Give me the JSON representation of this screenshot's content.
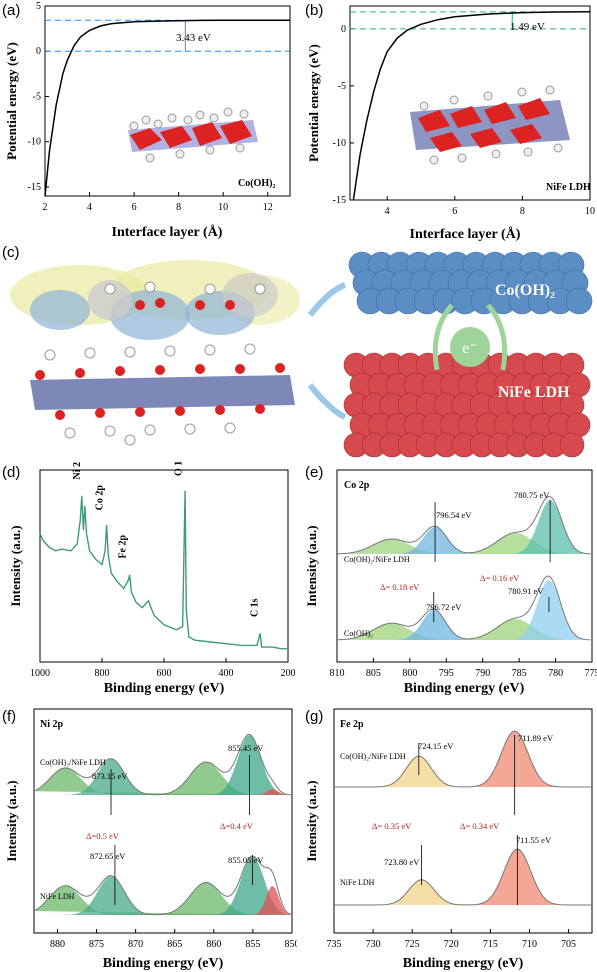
{
  "panels": {
    "a": {
      "label": "(a)",
      "xlabel": "Interface layer (Å)",
      "ylabel": "Potential energy (eV)",
      "xticks": [
        "2",
        "4",
        "6",
        "8",
        "10",
        "12"
      ],
      "yticks": [
        "5",
        "0",
        "-5",
        "-10",
        "-15"
      ],
      "annotation": "3.43 eV",
      "material": "Co(OH)₂",
      "line_color": "#000000",
      "dash_color": "#1e90ff"
    },
    "b": {
      "label": "(b)",
      "xlabel": "Interface layer (Å)",
      "ylabel": "Potential energy (eV)",
      "xticks": [
        "4",
        "6",
        "8",
        "10"
      ],
      "yticks": [
        "0",
        "-5",
        "-10",
        "-15"
      ],
      "annotation": "1.49 eV",
      "material": "NiFe LDH",
      "line_color": "#000000",
      "dash_color": "#2fb36a"
    },
    "c": {
      "label": "(c)",
      "top_label": "Co(OH)₂",
      "electron": "e⁻",
      "bottom_label": "NiFe LDH",
      "top_color": "#5b8ec4",
      "bottom_color": "#d6494c"
    },
    "d": {
      "label": "(d)",
      "xlabel": "Binding energy (eV)",
      "ylabel": "Intensity (a.u.)",
      "xticks": [
        "1000",
        "800",
        "600",
        "400",
        "200"
      ],
      "peaks": [
        "Ni 2p",
        "Co 2p",
        "Fe 2p",
        "O 1s",
        "C 1s"
      ],
      "line_color": "#3f9a7e"
    },
    "e": {
      "label": "(e)",
      "title": "Co 2p",
      "xlabel": "Binding energy (eV)",
      "ylabel": "Intensity (a.u.)",
      "xticks": [
        "810",
        "805",
        "800",
        "795",
        "790",
        "785",
        "780",
        "775"
      ],
      "top_sample": "Co(OH)₂/NiFe LDH",
      "bottom_sample": "Co(OH)₂",
      "peak_labels": [
        "796.54 eV",
        "780.75 eV",
        "796.72 eV",
        "780.91 eV"
      ],
      "shifts": [
        "Δ= 0.18 eV",
        "Δ= 0.16 eV"
      ]
    },
    "f": {
      "label": "(f)",
      "title": "Ni 2p",
      "xlabel": "Binding energy (eV)",
      "ylabel": "Intensity (a.u.)",
      "xticks": [
        "880",
        "875",
        "870",
        "865",
        "860",
        "855",
        "850"
      ],
      "top_sample": "Co(OH)₂/NiFe LDH",
      "bottom_sample": "NiFe LDH",
      "peak_labels": [
        "873.15 eV",
        "855.45 eV",
        "872.65 eV",
        "855.05 eV"
      ],
      "shifts": [
        "Δ=0.5 eV",
        "Δ=0.4 eV"
      ]
    },
    "g": {
      "label": "(g)",
      "title": "Fe 2p",
      "xlabel": "Binding energy (eV)",
      "ylabel": "Intensity (a.u.)",
      "xticks": [
        "735",
        "730",
        "725",
        "720",
        "715",
        "710",
        "705"
      ],
      "top_sample": "Co(OH)₂/NiFe LDH",
      "bottom_sample": "NiFe LDH",
      "peak_labels": [
        "724.15 eV",
        "711.89 eV",
        "723.80 eV",
        "711.55 eV"
      ],
      "shifts": [
        "Δ= 0.35 eV",
        "Δ= 0.34 eV"
      ]
    }
  },
  "chart_data": [
    {
      "type": "line",
      "xlabel": "Interface layer (Å)",
      "ylabel": "Potential energy (eV)",
      "xlim": [
        2,
        13
      ],
      "ylim": [
        -16,
        5
      ],
      "x": [
        2.0,
        2.2,
        2.5,
        2.8,
        3.0,
        3.3,
        3.6,
        4.0,
        4.5,
        5.0,
        6.0,
        7.0,
        8.0,
        9.0,
        10.0,
        11.0,
        12.0,
        13.0
      ],
      "y": [
        -16.0,
        -11.0,
        -6.0,
        -2.5,
        -1.0,
        0.6,
        1.6,
        2.3,
        2.8,
        3.05,
        3.25,
        3.33,
        3.38,
        3.41,
        3.42,
        3.43,
        3.43,
        3.43
      ],
      "annotations": [
        "3.43 eV",
        "Co(OH)₂"
      ]
    },
    {
      "type": "line",
      "xlabel": "Interface layer (Å)",
      "ylabel": "Potential energy (eV)",
      "xlim": [
        2.9,
        10
      ],
      "ylim": [
        -15,
        2
      ],
      "x": [
        3.0,
        3.2,
        3.4,
        3.6,
        3.8,
        4.0,
        4.3,
        4.6,
        5.0,
        5.5,
        6.0,
        7.0,
        8.0,
        9.0,
        10.0
      ],
      "y": [
        -15.0,
        -11.0,
        -8.0,
        -5.5,
        -3.5,
        -2.0,
        -0.8,
        -0.1,
        0.4,
        0.8,
        1.05,
        1.3,
        1.42,
        1.47,
        1.49
      ],
      "annotations": [
        "1.49 eV",
        "NiFe LDH"
      ]
    },
    {
      "type": "line",
      "xlabel": "Binding energy (eV)",
      "ylabel": "Intensity (a.u.)",
      "xlim": [
        1000,
        200
      ],
      "x": [
        1000,
        990,
        970,
        950,
        930,
        900,
        880,
        870,
        865,
        860,
        855,
        850,
        840,
        820,
        800,
        790,
        785,
        780,
        775,
        770,
        750,
        730,
        715,
        711,
        705,
        690,
        670,
        650,
        640,
        630,
        600,
        560,
        540,
        532,
        528,
        520,
        500,
        450,
        400,
        350,
        300,
        290,
        285,
        280,
        250,
        220,
        200
      ],
      "y": [
        0.7,
        0.66,
        0.62,
        0.6,
        0.61,
        0.6,
        0.64,
        0.78,
        0.92,
        0.72,
        0.86,
        0.7,
        0.6,
        0.55,
        0.52,
        0.6,
        0.75,
        0.58,
        0.52,
        0.47,
        0.42,
        0.38,
        0.43,
        0.46,
        0.36,
        0.3,
        0.27,
        0.31,
        0.26,
        0.22,
        0.17,
        0.14,
        0.16,
        0.95,
        0.25,
        0.1,
        0.08,
        0.07,
        0.06,
        0.05,
        0.05,
        0.12,
        0.04,
        0.04,
        0.04,
        0.03,
        0.03
      ],
      "annotations": [
        "Ni 2p",
        "Co 2p",
        "Fe 2p",
        "O 1s",
        "C 1s"
      ]
    },
    {
      "type": "line",
      "title": "Co 2p",
      "xlabel": "Binding energy (eV)",
      "ylabel": "Intensity (a.u.)",
      "xlim": [
        810,
        775
      ],
      "series": [
        {
          "name": "Co(OH)₂/NiFe LDH",
          "peaks": [
            796.54,
            780.75
          ]
        },
        {
          "name": "Co(OH)₂",
          "peaks": [
            796.72,
            780.91
          ]
        }
      ],
      "annotations": [
        "Δ= 0.18 eV",
        "Δ= 0.16 eV"
      ]
    },
    {
      "type": "line",
      "title": "Ni 2p",
      "xlabel": "Binding energy (eV)",
      "ylabel": "Intensity (a.u.)",
      "xlim": [
        883,
        850
      ],
      "series": [
        {
          "name": "Co(OH)₂/NiFe LDH",
          "peaks": [
            873.15,
            855.45
          ]
        },
        {
          "name": "NiFe LDH",
          "peaks": [
            872.65,
            855.05
          ]
        }
      ],
      "annotations": [
        "Δ=0.5 eV",
        "Δ=0.4 eV"
      ]
    },
    {
      "type": "line",
      "title": "Fe 2p",
      "xlabel": "Binding energy (eV)",
      "ylabel": "Intensity (a.u.)",
      "xlim": [
        735,
        702
      ],
      "series": [
        {
          "name": "Co(OH)₂/NiFe LDH",
          "peaks": [
            724.15,
            711.89
          ]
        },
        {
          "name": "NiFe LDH",
          "peaks": [
            723.8,
            711.55
          ]
        }
      ],
      "annotations": [
        "Δ= 0.35 eV",
        "Δ= 0.34 eV"
      ]
    }
  ]
}
